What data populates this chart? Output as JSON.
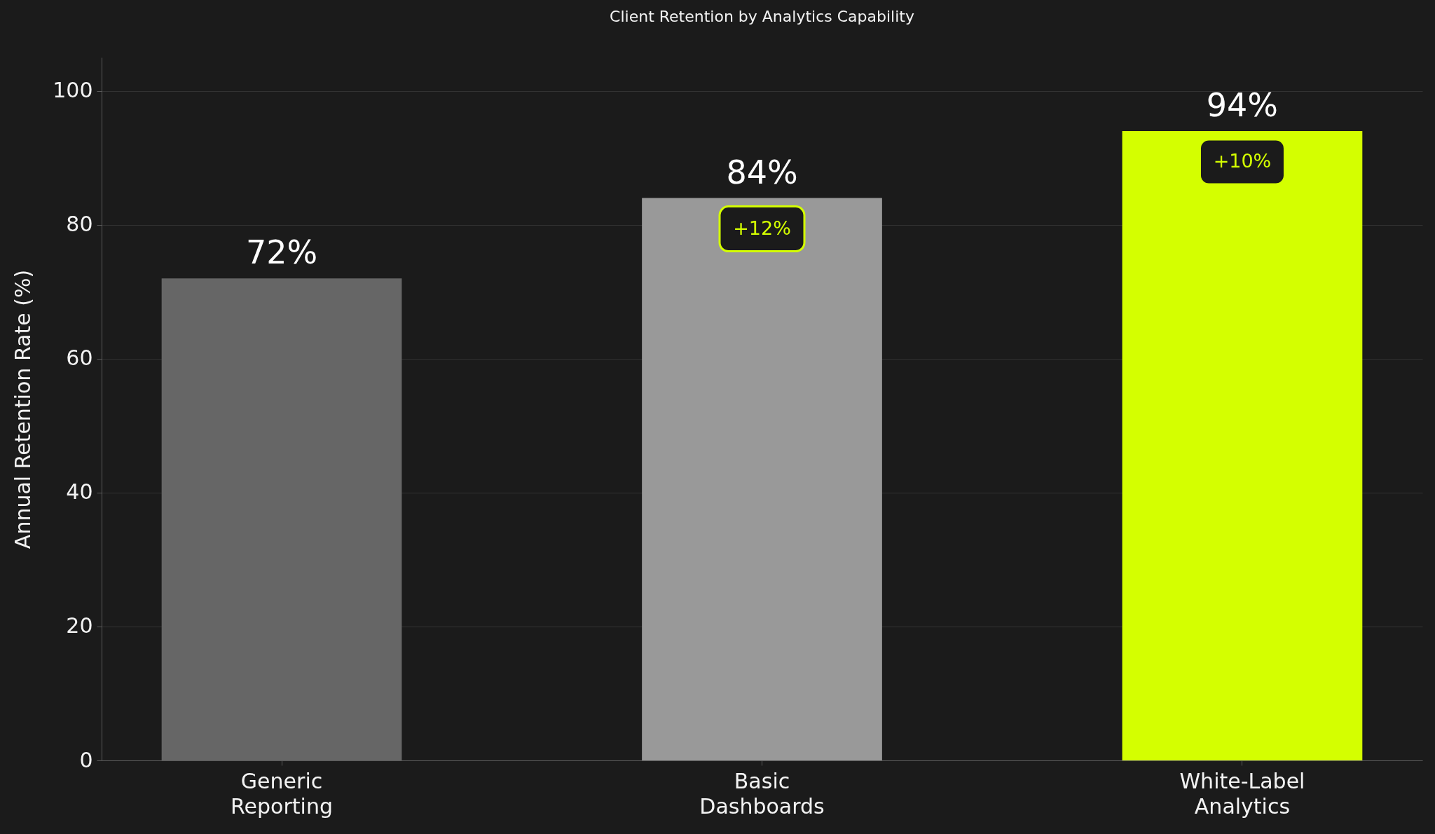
{
  "chart_data": {
    "type": "bar",
    "title": "Client Retention by Analytics Capability",
    "ylabel": "Annual Retention Rate (%)",
    "categories": [
      "Generic Reporting",
      "Basic Dashboards",
      "White-Label Analytics"
    ],
    "values": [
      72,
      84,
      94
    ],
    "colors": [
      "#666666",
      "#999999",
      "#d4ff00"
    ],
    "value_labels": [
      "72%",
      "84%",
      "94%"
    ],
    "ylim": [
      0,
      105
    ],
    "yticks": [
      0,
      20,
      40,
      60,
      80,
      100
    ],
    "grid": "y",
    "annotations": [
      "+12%",
      "+10%"
    ]
  }
}
